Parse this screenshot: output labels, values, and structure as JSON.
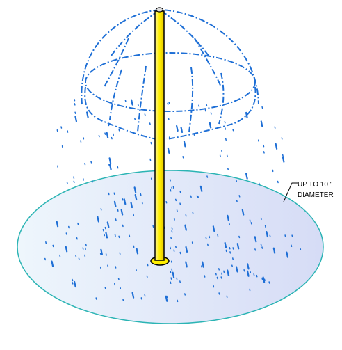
{
  "annotation": {
    "lines": [
      "UP TO 10 '",
      "DIAMETER"
    ]
  }
}
